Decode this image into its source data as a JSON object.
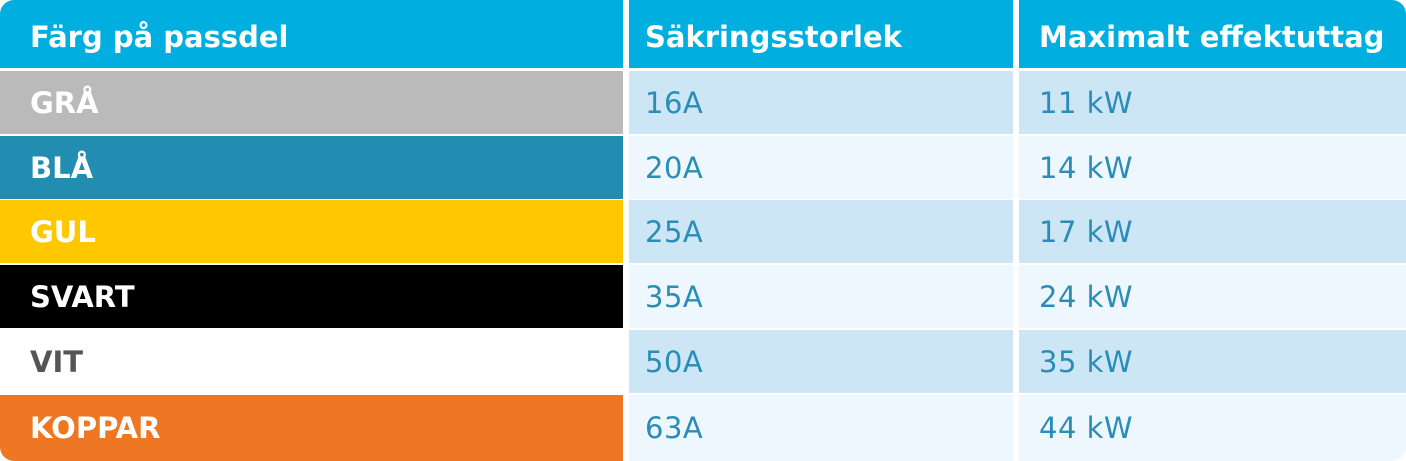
{
  "table": {
    "headers": [
      "Färg på passdel",
      "Säkringsstorlek",
      "Maximalt effektuttag"
    ],
    "rows": [
      {
        "color_name": "GRÅ",
        "fuse": "16A",
        "power": "11 kW",
        "bg": "#bababa",
        "fg": "#ffffff"
      },
      {
        "color_name": "BLÅ",
        "fuse": "20A",
        "power": "14 kW",
        "bg": "#238db1",
        "fg": "#ffffff"
      },
      {
        "color_name": "GUL",
        "fuse": "25A",
        "power": "17 kW",
        "bg": "#fec800",
        "fg": "#ffffff"
      },
      {
        "color_name": "SVART",
        "fuse": "35A",
        "power": "24 kW",
        "bg": "#000000",
        "fg": "#ffffff"
      },
      {
        "color_name": "VIT",
        "fuse": "50A",
        "power": "35 kW",
        "bg": "#ffffff",
        "fg": "#555555"
      },
      {
        "color_name": "KOPPAR",
        "fuse": "63A",
        "power": "44 kW",
        "bg": "#ed7722",
        "fg": "#ffffff"
      }
    ],
    "header_color": "#00afdf",
    "value_text_color": "#2a8db8",
    "stripe_dark": "#cde6f5",
    "stripe_light": "#eef7fd"
  }
}
